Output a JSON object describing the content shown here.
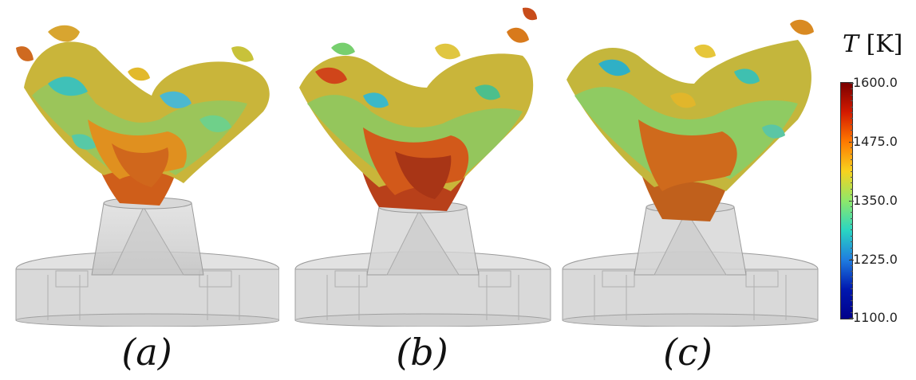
{
  "panels": [
    {
      "id": "a",
      "caption": "(a)"
    },
    {
      "id": "b",
      "caption": "(b)"
    },
    {
      "id": "c",
      "caption": "(c)"
    }
  ],
  "colorbar": {
    "variable": "T",
    "unit": "[K]",
    "ticks": [
      "1600.0",
      "1475.0",
      "1350.0",
      "1225.0",
      "1100.0"
    ],
    "colors": [
      "#7a0000",
      "#d41a00",
      "#ff7a00",
      "#f7d21e",
      "#8ee86a",
      "#2ad6c2",
      "#1f7de0",
      "#0018b0",
      "#00008a"
    ]
  }
}
